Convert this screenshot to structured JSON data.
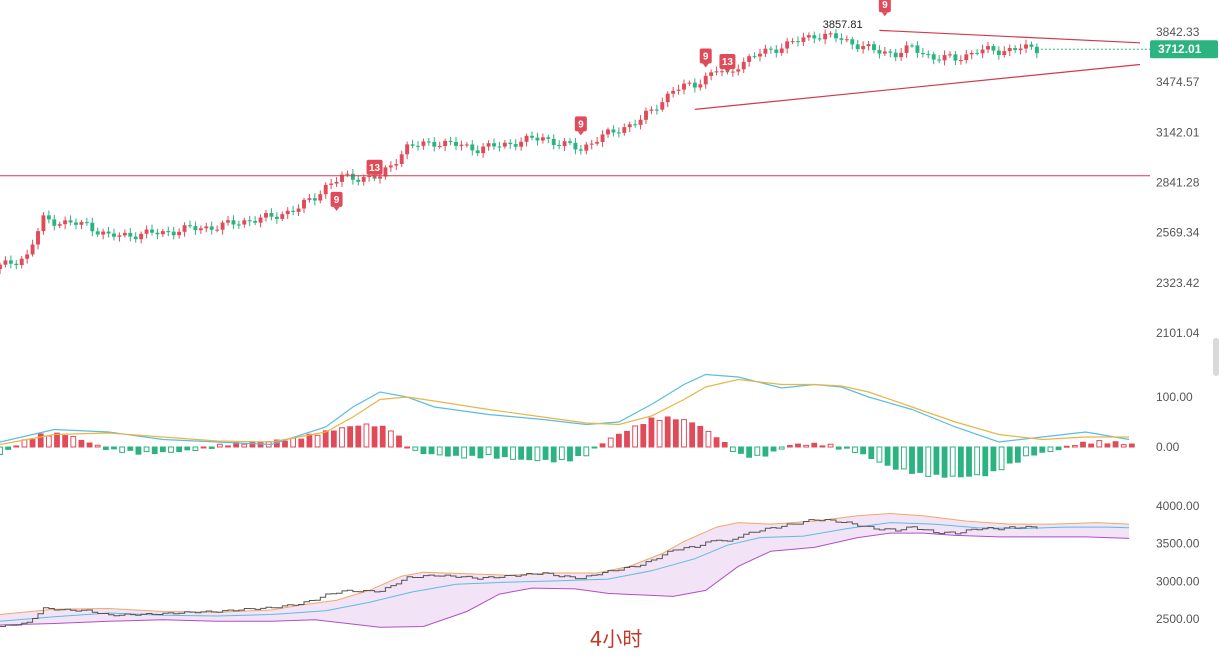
{
  "timeframe_label": "4小时",
  "colors": {
    "up": "#e04b59",
    "down": "#2bb380",
    "trendline": "#d23a4c",
    "price_tag": "#2bb380",
    "td_badge": "#e04b59",
    "dif": "#5bbde0",
    "dea": "#e8b54a",
    "boll_upper": "#f0a868",
    "boll_mid": "#5bbde0",
    "boll_lower": "#b04fc5",
    "boll_fill": "#f3e3f7"
  },
  "chart_data": [
    {
      "type": "candlestick",
      "title": "",
      "candle_count": 150,
      "y_ticks": [
        "3842.33",
        "3474.57",
        "3142.01",
        "2841.28",
        "2569.34",
        "2323.42",
        "2101.04"
      ],
      "y_tick_values": [
        3842.33,
        3474.57,
        3142.01,
        2841.28,
        2569.34,
        2323.42,
        2101.04
      ],
      "y_scale": "log",
      "close_path": [
        [
          0,
          2400
        ],
        [
          5,
          2450
        ],
        [
          8,
          2640
        ],
        [
          12,
          2620
        ],
        [
          16,
          2610
        ],
        [
          20,
          2550
        ],
        [
          25,
          2560
        ],
        [
          30,
          2570
        ],
        [
          35,
          2590
        ],
        [
          40,
          2600
        ],
        [
          45,
          2630
        ],
        [
          50,
          2650
        ],
        [
          55,
          2700
        ],
        [
          58,
          2760
        ],
        [
          60,
          2820
        ],
        [
          63,
          2870
        ],
        [
          70,
          2870
        ],
        [
          75,
          3050
        ],
        [
          80,
          3080
        ],
        [
          85,
          3060
        ],
        [
          88,
          3040
        ],
        [
          92,
          3060
        ],
        [
          95,
          3080
        ],
        [
          100,
          3110
        ],
        [
          103,
          3070
        ],
        [
          107,
          3040
        ],
        [
          110,
          3100
        ],
        [
          114,
          3160
        ],
        [
          118,
          3220
        ],
        [
          120,
          3280
        ],
        [
          124,
          3420
        ],
        [
          128,
          3460
        ],
        [
          132,
          3560
        ],
        [
          134,
          3520
        ],
        [
          136,
          3600
        ],
        [
          140,
          3680
        ],
        [
          143,
          3720
        ],
        [
          146,
          3760
        ],
        [
          150,
          3820
        ],
        [
          154,
          3800
        ],
        [
          157,
          3760
        ],
        [
          161,
          3700
        ],
        [
          165,
          3680
        ],
        [
          168,
          3720
        ],
        [
          172,
          3650
        ],
        [
          176,
          3640
        ],
        [
          180,
          3700
        ],
        [
          184,
          3700
        ],
        [
          188,
          3720
        ],
        [
          191,
          3712
        ]
      ],
      "horizontal_line": 2880,
      "trendlines": [
        {
          "x1": 162,
          "y1": 3855,
          "x2": 210,
          "y2": 3760
        },
        {
          "x1": 128,
          "y1": 3290,
          "x2": 210,
          "y2": 3600
        }
      ],
      "last_price": "3712.01",
      "annotations": [
        {
          "text": "3857.81",
          "x": 160,
          "y": 3857.81
        },
        {
          "text": "9",
          "x": 62,
          "y": 2700
        },
        {
          "text": "13",
          "x": 69,
          "y": 2880
        },
        {
          "text": "9",
          "x": 107,
          "y": 3142
        },
        {
          "text": "9",
          "x": 130,
          "y": 3600
        },
        {
          "text": "13",
          "x": 134,
          "y": 3560
        },
        {
          "text": "9",
          "x": 163,
          "y": 3990
        }
      ]
    },
    {
      "type": "macd",
      "title": "",
      "y_ticks": [
        "100.00",
        "0.00"
      ],
      "y_tick_values": [
        100,
        0
      ],
      "dif": [
        [
          0,
          10
        ],
        [
          10,
          35
        ],
        [
          20,
          30
        ],
        [
          30,
          15
        ],
        [
          40,
          10
        ],
        [
          50,
          5
        ],
        [
          60,
          40
        ],
        [
          65,
          80
        ],
        [
          70,
          110
        ],
        [
          75,
          100
        ],
        [
          80,
          80
        ],
        [
          90,
          65
        ],
        [
          100,
          55
        ],
        [
          108,
          45
        ],
        [
          114,
          50
        ],
        [
          120,
          85
        ],
        [
          126,
          125
        ],
        [
          130,
          145
        ],
        [
          136,
          140
        ],
        [
          144,
          118
        ],
        [
          150,
          125
        ],
        [
          155,
          120
        ],
        [
          160,
          100
        ],
        [
          168,
          75
        ],
        [
          176,
          40
        ],
        [
          184,
          10
        ],
        [
          192,
          20
        ],
        [
          200,
          30
        ],
        [
          208,
          15
        ]
      ],
      "dea": [
        [
          0,
          5
        ],
        [
          10,
          25
        ],
        [
          20,
          28
        ],
        [
          30,
          20
        ],
        [
          40,
          12
        ],
        [
          50,
          10
        ],
        [
          60,
          30
        ],
        [
          65,
          60
        ],
        [
          70,
          95
        ],
        [
          75,
          100
        ],
        [
          80,
          92
        ],
        [
          90,
          75
        ],
        [
          100,
          60
        ],
        [
          108,
          48
        ],
        [
          114,
          45
        ],
        [
          120,
          62
        ],
        [
          126,
          95
        ],
        [
          130,
          120
        ],
        [
          136,
          135
        ],
        [
          144,
          125
        ],
        [
          150,
          125
        ],
        [
          155,
          122
        ],
        [
          160,
          110
        ],
        [
          168,
          80
        ],
        [
          176,
          50
        ],
        [
          184,
          25
        ],
        [
          192,
          15
        ],
        [
          200,
          20
        ],
        [
          208,
          20
        ]
      ],
      "histogram_path": [
        [
          0,
          -15
        ],
        [
          4,
          10
        ],
        [
          8,
          25
        ],
        [
          12,
          25
        ],
        [
          16,
          10
        ],
        [
          20,
          -5
        ],
        [
          26,
          -12
        ],
        [
          32,
          -10
        ],
        [
          36,
          -5
        ],
        [
          42,
          5
        ],
        [
          48,
          10
        ],
        [
          54,
          15
        ],
        [
          60,
          30
        ],
        [
          64,
          40
        ],
        [
          68,
          45
        ],
        [
          72,
          35
        ],
        [
          76,
          -8
        ],
        [
          80,
          -15
        ],
        [
          86,
          -20
        ],
        [
          90,
          -18
        ],
        [
          96,
          -25
        ],
        [
          104,
          -28
        ],
        [
          108,
          -15
        ],
        [
          112,
          15
        ],
        [
          116,
          35
        ],
        [
          120,
          55
        ],
        [
          124,
          58
        ],
        [
          128,
          48
        ],
        [
          132,
          20
        ],
        [
          136,
          -15
        ],
        [
          140,
          -20
        ],
        [
          146,
          5
        ],
        [
          152,
          5
        ],
        [
          158,
          -10
        ],
        [
          164,
          -40
        ],
        [
          170,
          -55
        ],
        [
          176,
          -60
        ],
        [
          182,
          -55
        ],
        [
          186,
          -35
        ],
        [
          190,
          -15
        ],
        [
          194,
          -8
        ],
        [
          198,
          5
        ],
        [
          202,
          10
        ],
        [
          206,
          8
        ],
        [
          208,
          5
        ]
      ]
    },
    {
      "type": "bollinger",
      "title": "",
      "y_ticks": [
        "4000.00",
        "3500.00",
        "3000.00",
        "2500.00"
      ],
      "y_tick_values": [
        4000,
        3500,
        3000,
        2500
      ],
      "upper": [
        [
          0,
          2560
        ],
        [
          10,
          2630
        ],
        [
          20,
          2640
        ],
        [
          30,
          2600
        ],
        [
          40,
          2590
        ],
        [
          50,
          2620
        ],
        [
          55,
          2680
        ],
        [
          62,
          2750
        ],
        [
          68,
          2880
        ],
        [
          74,
          3070
        ],
        [
          78,
          3120
        ],
        [
          86,
          3100
        ],
        [
          94,
          3080
        ],
        [
          102,
          3110
        ],
        [
          110,
          3110
        ],
        [
          116,
          3200
        ],
        [
          122,
          3370
        ],
        [
          126,
          3530
        ],
        [
          132,
          3720
        ],
        [
          136,
          3780
        ],
        [
          142,
          3760
        ],
        [
          150,
          3800
        ],
        [
          158,
          3870
        ],
        [
          164,
          3900
        ],
        [
          170,
          3870
        ],
        [
          178,
          3800
        ],
        [
          186,
          3760
        ],
        [
          194,
          3760
        ],
        [
          202,
          3780
        ],
        [
          208,
          3760
        ]
      ],
      "mid": [
        [
          0,
          2470
        ],
        [
          10,
          2530
        ],
        [
          20,
          2580
        ],
        [
          30,
          2550
        ],
        [
          40,
          2540
        ],
        [
          50,
          2560
        ],
        [
          60,
          2610
        ],
        [
          68,
          2720
        ],
        [
          76,
          2860
        ],
        [
          84,
          2960
        ],
        [
          94,
          2990
        ],
        [
          104,
          3010
        ],
        [
          112,
          3030
        ],
        [
          120,
          3140
        ],
        [
          128,
          3300
        ],
        [
          134,
          3480
        ],
        [
          140,
          3580
        ],
        [
          148,
          3600
        ],
        [
          156,
          3700
        ],
        [
          164,
          3780
        ],
        [
          172,
          3760
        ],
        [
          180,
          3710
        ],
        [
          188,
          3700
        ],
        [
          196,
          3720
        ],
        [
          204,
          3720
        ],
        [
          208,
          3710
        ]
      ],
      "lower": [
        [
          0,
          2420
        ],
        [
          10,
          2440
        ],
        [
          20,
          2470
        ],
        [
          30,
          2490
        ],
        [
          40,
          2470
        ],
        [
          50,
          2470
        ],
        [
          58,
          2490
        ],
        [
          64,
          2440
        ],
        [
          70,
          2390
        ],
        [
          78,
          2400
        ],
        [
          86,
          2600
        ],
        [
          92,
          2830
        ],
        [
          98,
          2910
        ],
        [
          106,
          2900
        ],
        [
          112,
          2840
        ],
        [
          118,
          2820
        ],
        [
          124,
          2800
        ],
        [
          130,
          2880
        ],
        [
          136,
          3200
        ],
        [
          142,
          3400
        ],
        [
          150,
          3450
        ],
        [
          158,
          3580
        ],
        [
          164,
          3640
        ],
        [
          170,
          3640
        ],
        [
          176,
          3610
        ],
        [
          184,
          3590
        ],
        [
          192,
          3590
        ],
        [
          200,
          3590
        ],
        [
          208,
          3570
        ]
      ]
    }
  ]
}
